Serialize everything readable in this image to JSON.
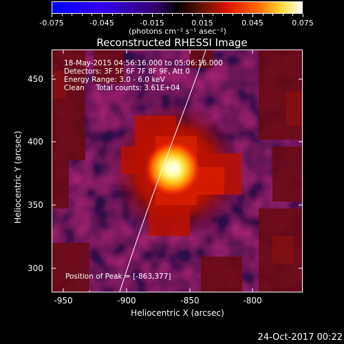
{
  "colorbar": {
    "labels": [
      "-0.075",
      "-0.045",
      "-0.015",
      "0.015",
      "0.045",
      "0.075"
    ],
    "units": "(photons cm⁻² s⁻¹ asec⁻²)"
  },
  "title": "Reconstructed RHESSI Image",
  "annotations": {
    "line1": "18-May-2015 04:56:16.000 to 05:06:16.000",
    "line2": "Detectors: 3F 5F 6F 7F 8F 9F, Att 0",
    "line3": "Energy Range: 3.0 - 6.0 keV",
    "line4": "Clean     Total counts: 3.61E+04",
    "peak": "Position of Peak = [-863,377]"
  },
  "axes": {
    "xlabel": "Heliocentric X (arcsec)",
    "ylabel": "Heliocentric Y (arcsec)",
    "xticks": [
      "-950",
      "-900",
      "-850",
      "-800"
    ],
    "yticks": [
      "450",
      "400",
      "350",
      "300"
    ]
  },
  "footer": {
    "date": "24-Oct-2017 00:22"
  }
}
